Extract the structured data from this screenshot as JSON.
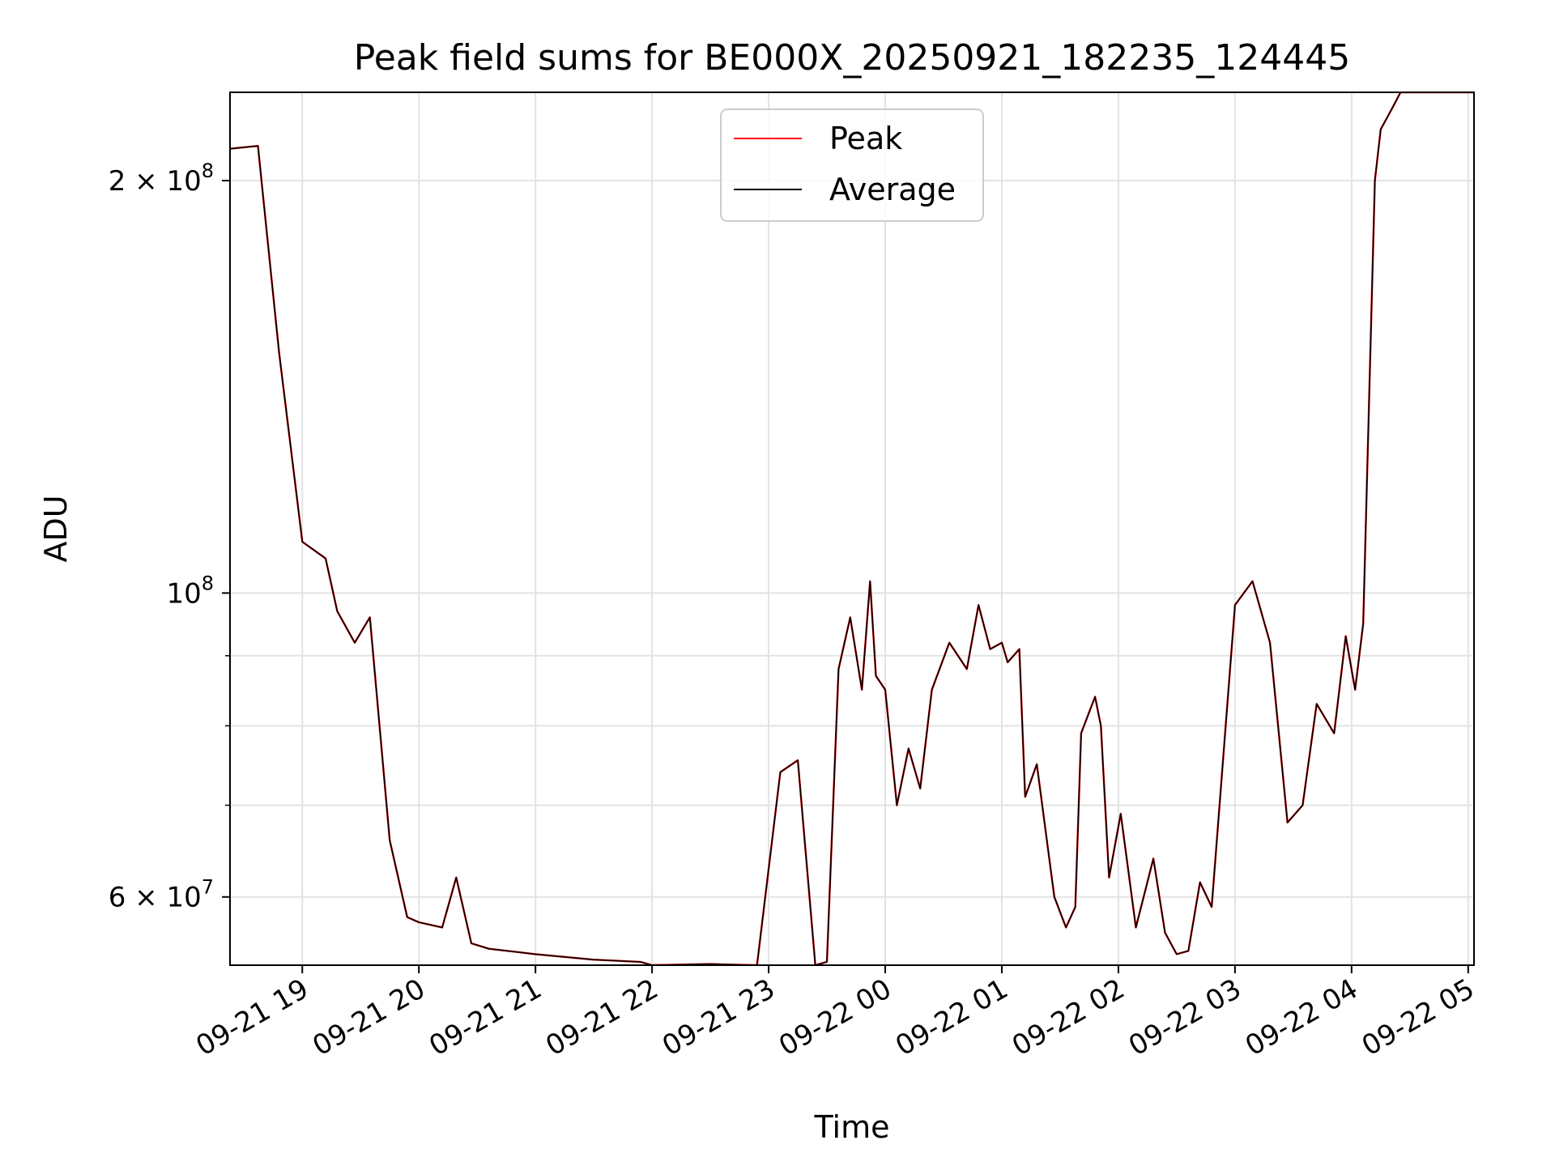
{
  "chart_data": {
    "type": "line",
    "title": "Peak field sums for BE000X_20250921_182235_124445",
    "xlabel": "Time",
    "ylabel": "ADU",
    "y_scale": "log",
    "ylim": [
      53500000,
      232000000
    ],
    "xlim_hours_since_0921_1800": [
      0.38,
      11.05
    ],
    "grid": true,
    "legend_position": "top-center",
    "x_ticks": [
      {
        "hour": 1,
        "label": "09-21 19"
      },
      {
        "hour": 2,
        "label": "09-21 20"
      },
      {
        "hour": 3,
        "label": "09-21 21"
      },
      {
        "hour": 4,
        "label": "09-21 22"
      },
      {
        "hour": 5,
        "label": "09-21 23"
      },
      {
        "hour": 6,
        "label": "09-22 00"
      },
      {
        "hour": 7,
        "label": "09-22 01"
      },
      {
        "hour": 8,
        "label": "09-22 02"
      },
      {
        "hour": 9,
        "label": "09-22 03"
      },
      {
        "hour": 10,
        "label": "09-22 04"
      },
      {
        "hour": 11,
        "label": "09-22 05"
      }
    ],
    "y_major_ticks": [
      {
        "value": 60000000,
        "base": "6 × 10",
        "exp": "7"
      },
      {
        "value": 100000000,
        "base": "10",
        "exp": "8"
      },
      {
        "value": 200000000,
        "base": "2 × 10",
        "exp": "8"
      }
    ],
    "y_minor_ticks": [
      70000000,
      80000000,
      90000000
    ],
    "series": [
      {
        "name": "Peak",
        "color": "#ff0000",
        "x_hours": [
          0.38,
          0.62,
          0.8,
          1.0,
          1.2,
          1.3,
          1.45,
          1.58,
          1.75,
          1.9,
          2.0,
          2.2,
          2.32,
          2.45,
          2.6,
          3.0,
          3.5,
          3.9,
          4.0,
          4.5,
          4.9,
          5.1,
          5.25,
          5.4,
          5.5,
          5.6,
          5.7,
          5.8,
          5.87,
          5.92,
          6.0,
          6.1,
          6.2,
          6.3,
          6.4,
          6.55,
          6.7,
          6.8,
          6.9,
          7.0,
          7.05,
          7.15,
          7.2,
          7.3,
          7.45,
          7.55,
          7.63,
          7.68,
          7.8,
          7.85,
          7.92,
          8.02,
          8.15,
          8.3,
          8.4,
          8.5,
          8.6,
          8.7,
          8.8,
          9.0,
          9.15,
          9.3,
          9.45,
          9.58,
          9.7,
          9.85,
          9.95,
          10.03,
          10.1,
          10.2,
          10.25,
          10.35,
          10.42,
          10.5,
          10.6,
          10.7,
          10.8,
          10.95,
          11.05
        ],
        "y": [
          211000000,
          212000000,
          150000000,
          109000000,
          106000000,
          97000000,
          92000000,
          96000000,
          66000000,
          58000000,
          57500000,
          57000000,
          62000000,
          55500000,
          55000000,
          54500000,
          54000000,
          53800000,
          53500000,
          53600000,
          53500000,
          74000000,
          75500000,
          53500000,
          53800000,
          88000000,
          96000000,
          85000000,
          102000000,
          87000000,
          85000000,
          70000000,
          77000000,
          72000000,
          85000000,
          92000000,
          88000000,
          98000000,
          91000000,
          92000000,
          89000000,
          91000000,
          71000000,
          75000000,
          60000000,
          57000000,
          59000000,
          79000000,
          84000000,
          80000000,
          62000000,
          69000000,
          57000000,
          64000000,
          56500000,
          54500000,
          54800000,
          61500000,
          59000000,
          98000000,
          102000000,
          92000000,
          68000000,
          70000000,
          83000000,
          79000000,
          93000000,
          85000000,
          95000000,
          200000000,
          218000000,
          226000000,
          232000000,
          232000000,
          232000000,
          232000000,
          232000000,
          232000000,
          232000000
        ]
      },
      {
        "name": "Average",
        "color": "#000000",
        "x_hours": [
          0.38,
          0.62,
          0.8,
          1.0,
          1.2,
          1.3,
          1.45,
          1.58,
          1.75,
          1.9,
          2.0,
          2.2,
          2.32,
          2.45,
          2.6,
          3.0,
          3.5,
          3.9,
          4.0,
          4.5,
          4.9,
          5.1,
          5.25,
          5.4,
          5.5,
          5.6,
          5.7,
          5.8,
          5.87,
          5.92,
          6.0,
          6.1,
          6.2,
          6.3,
          6.4,
          6.55,
          6.7,
          6.8,
          6.9,
          7.0,
          7.05,
          7.15,
          7.2,
          7.3,
          7.45,
          7.55,
          7.63,
          7.68,
          7.8,
          7.85,
          7.92,
          8.02,
          8.15,
          8.3,
          8.4,
          8.5,
          8.6,
          8.7,
          8.8,
          9.0,
          9.15,
          9.3,
          9.45,
          9.58,
          9.7,
          9.85,
          9.95,
          10.03,
          10.1,
          10.2,
          10.25,
          10.35,
          10.42,
          10.5,
          10.6,
          10.7,
          10.8,
          10.95,
          11.05
        ],
        "y": [
          211000000,
          212000000,
          150000000,
          109000000,
          106000000,
          97000000,
          92000000,
          96000000,
          66000000,
          58000000,
          57500000,
          57000000,
          62000000,
          55500000,
          55000000,
          54500000,
          54000000,
          53800000,
          53500000,
          53600000,
          53500000,
          74000000,
          75500000,
          53500000,
          53800000,
          88000000,
          96000000,
          85000000,
          102000000,
          87000000,
          85000000,
          70000000,
          77000000,
          72000000,
          85000000,
          92000000,
          88000000,
          98000000,
          91000000,
          92000000,
          89000000,
          91000000,
          71000000,
          75000000,
          60000000,
          57000000,
          59000000,
          79000000,
          84000000,
          80000000,
          62000000,
          69000000,
          57000000,
          64000000,
          56500000,
          54500000,
          54800000,
          61500000,
          59000000,
          98000000,
          102000000,
          92000000,
          68000000,
          70000000,
          83000000,
          79000000,
          93000000,
          85000000,
          95000000,
          200000000,
          218000000,
          226000000,
          232000000,
          232000000,
          232000000,
          232000000,
          232000000,
          232000000,
          232000000
        ]
      }
    ]
  }
}
